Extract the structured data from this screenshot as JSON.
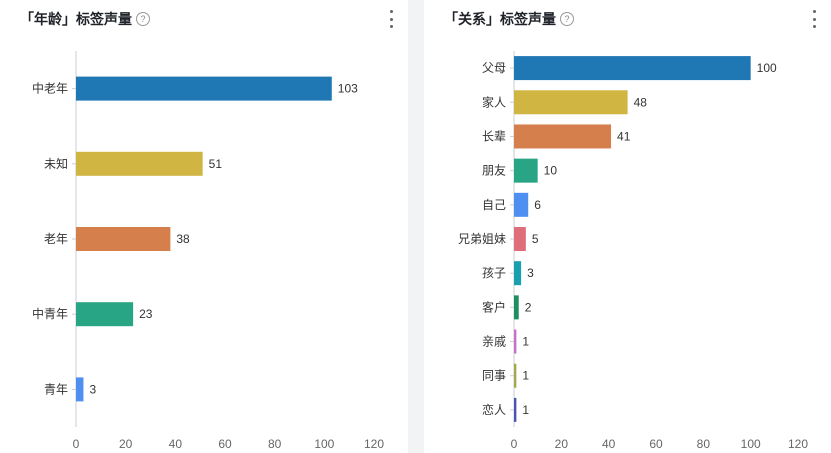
{
  "panels": {
    "left": {
      "title": "「年龄」标签声量",
      "help_icon": "question-circle-icon",
      "more_icon": "more-vertical-icon"
    },
    "right": {
      "title": "「关系」标签声量",
      "help_icon": "question-circle-icon",
      "more_icon": "more-vertical-icon"
    }
  },
  "chart_data": [
    {
      "type": "bar",
      "orientation": "horizontal",
      "categories": [
        "中老年",
        "未知",
        "老年",
        "中青年",
        "青年"
      ],
      "values": [
        103,
        51,
        38,
        23,
        3
      ],
      "colors": [
        "#1f77b4",
        "#d1b543",
        "#d57f4d",
        "#27a584",
        "#4f8ff2"
      ],
      "xlim": [
        0,
        120
      ],
      "xticks": [
        0,
        20,
        40,
        60,
        80,
        100,
        120
      ],
      "grid": false
    },
    {
      "type": "bar",
      "orientation": "horizontal",
      "categories": [
        "父母",
        "家人",
        "长辈",
        "朋友",
        "自己",
        "兄弟姐妹",
        "孩子",
        "客户",
        "亲戚",
        "同事",
        "恋人"
      ],
      "values": [
        100,
        48,
        41,
        10,
        6,
        5,
        3,
        2,
        1,
        1,
        1
      ],
      "colors": [
        "#1f77b4",
        "#d1b543",
        "#d57f4d",
        "#27a584",
        "#4f8ff2",
        "#e06d7a",
        "#1a9fae",
        "#1f8f5f",
        "#c86fc8",
        "#a4a84a",
        "#4a52b5"
      ],
      "xlim": [
        0,
        120
      ],
      "xticks": [
        0,
        20,
        40,
        60,
        80,
        100,
        120
      ],
      "grid": false
    }
  ]
}
